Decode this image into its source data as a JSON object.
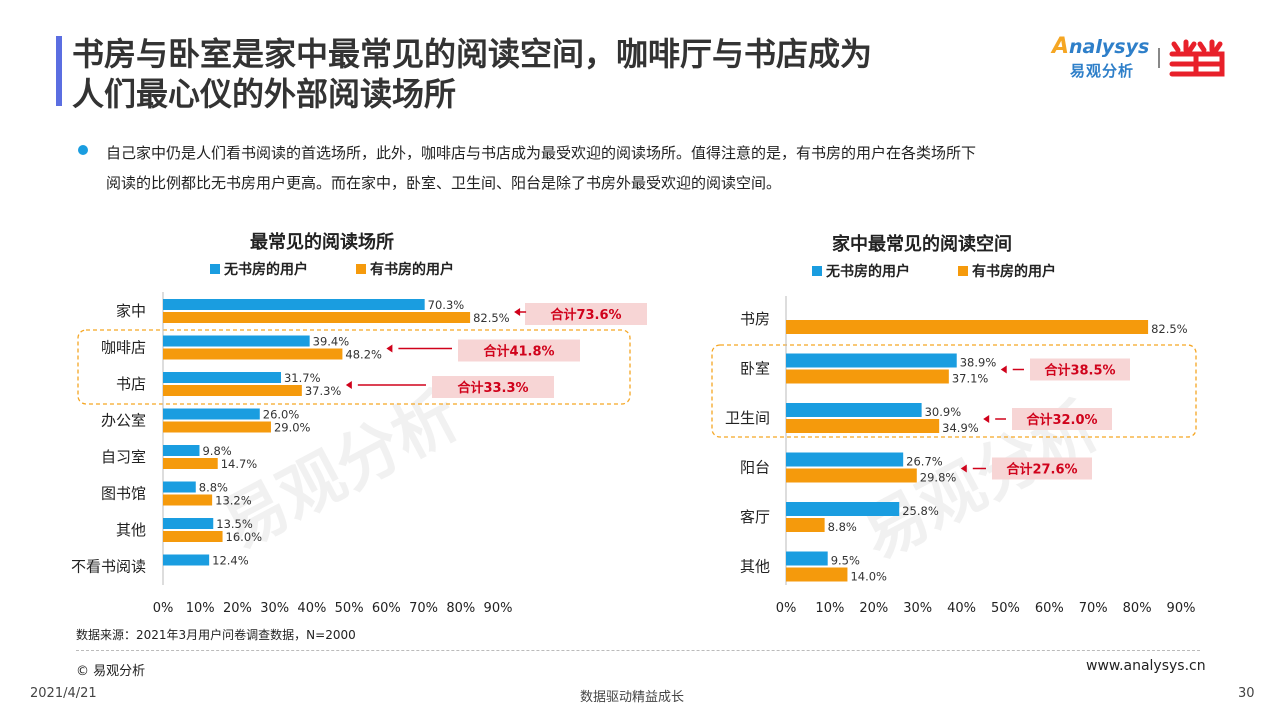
{
  "title": {
    "line1": "书房与卧室是家中最常见的阅读空间，咖啡厅与书店成为",
    "line2": "人们最心仪的外部阅读场所"
  },
  "logo": {
    "en": "nalysys",
    "en_a": "A",
    "cn": "易观分析"
  },
  "description": {
    "line1": "自己家中仍是人们看书阅读的首选场所，此外，咖啡店与书店成为最受欢迎的阅读场所。值得注意的是，有书房的用户在各类场所下",
    "line2": "阅读的比例都比无书房用户更高。而在家中，卧室、卫生间、阳台是除了书房外最受欢迎的阅读空间。"
  },
  "watermark": "易观分析",
  "colors": {
    "blue": "#1a9de0",
    "orange": "#f59a0c",
    "red": "#d0021b",
    "highlight_bg": "#f7d5d5",
    "dash_box": "#f5a623"
  },
  "chart_data": [
    {
      "type": "bar",
      "orientation": "horizontal",
      "title": "最常见的阅读场所",
      "categories": [
        "家中",
        "咖啡店",
        "书店",
        "办公室",
        "自习室",
        "图书馆",
        "其他",
        "不看书阅读"
      ],
      "series": [
        {
          "name": "无书房的用户",
          "color": "#1a9de0",
          "values": [
            70.3,
            39.4,
            31.7,
            26.0,
            9.8,
            8.8,
            13.5,
            12.4
          ]
        },
        {
          "name": "有书房的用户",
          "color": "#f59a0c",
          "values": [
            82.5,
            48.2,
            37.3,
            29.0,
            14.7,
            13.2,
            16.0,
            null
          ]
        }
      ],
      "xlim": [
        0,
        90
      ],
      "xticks": [
        "0%",
        "10%",
        "20%",
        "30%",
        "40%",
        "50%",
        "60%",
        "70%",
        "80%",
        "90%"
      ],
      "annotations": [
        {
          "category": "家中",
          "label": "合计73.6%"
        },
        {
          "category": "咖啡店",
          "label": "合计41.8%"
        },
        {
          "category": "书店",
          "label": "合计33.3%"
        }
      ],
      "highlight": [
        "咖啡店",
        "书店"
      ],
      "legend": "top-center"
    },
    {
      "type": "bar",
      "orientation": "horizontal",
      "title": "家中最常见的阅读空间",
      "categories": [
        "书房",
        "卧室",
        "卫生间",
        "阳台",
        "客厅",
        "其他"
      ],
      "series": [
        {
          "name": "无书房的用户",
          "color": "#1a9de0",
          "values": [
            null,
            38.9,
            30.9,
            26.7,
            25.8,
            9.5
          ]
        },
        {
          "name": "有书房的用户",
          "color": "#f59a0c",
          "values": [
            82.5,
            37.1,
            34.9,
            29.8,
            8.8,
            14.0
          ]
        }
      ],
      "xlim": [
        0,
        90
      ],
      "xticks": [
        "0%",
        "10%",
        "20%",
        "30%",
        "40%",
        "50%",
        "60%",
        "70%",
        "80%",
        "90%"
      ],
      "annotations": [
        {
          "category": "卧室",
          "label": "合计38.5%"
        },
        {
          "category": "卫生间",
          "label": "合计32.0%"
        },
        {
          "category": "阳台",
          "label": "合计27.6%"
        }
      ],
      "highlight": [
        "卧室",
        "卫生间"
      ],
      "legend": "top-center"
    }
  ],
  "footer": {
    "source": "数据来源：2021年3月用户问卷调查数据，N=2000",
    "copyright": "© 易观分析",
    "url": "www.analysys.cn",
    "date": "2021/4/21",
    "slogan": "数据驱动精益成长",
    "page": "30"
  }
}
